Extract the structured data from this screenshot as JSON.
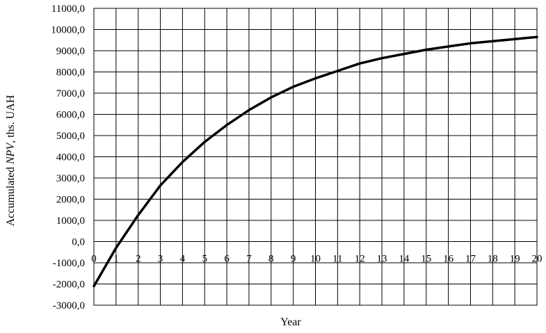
{
  "chart_data": {
    "type": "line",
    "title": "",
    "xlabel": "Year",
    "ylabel_parts": [
      "Accumulated ",
      "NPV",
      ", ths. UAH"
    ],
    "x": [
      0,
      1,
      2,
      3,
      4,
      5,
      6,
      7,
      8,
      9,
      10,
      11,
      12,
      13,
      14,
      15,
      16,
      17,
      18,
      19,
      20
    ],
    "series": [
      {
        "values": [
          -2100,
          -300,
          1250,
          2650,
          3750,
          4700,
          5500,
          6200,
          6800,
          7300,
          7700,
          8050,
          8400,
          8650,
          8850,
          9050,
          9200,
          9350,
          9450,
          9550,
          9650
        ]
      }
    ],
    "xlim": [
      0,
      20
    ],
    "ylim": [
      -3000,
      11000
    ],
    "y_ticks": [
      -3000,
      -2000,
      -1000,
      0,
      1000,
      2000,
      3000,
      4000,
      5000,
      6000,
      7000,
      8000,
      9000,
      10000,
      11000
    ],
    "y_tick_labels": [
      "-3000,0",
      "-2000,0",
      "-1000,0",
      "0,0",
      "1000,0",
      "2000,0",
      "3000,0",
      "4000,0",
      "5000,0",
      "6000,0",
      "7000,0",
      "8000,0",
      "9000,0",
      "10000,0",
      "11000,0"
    ],
    "x_tick_labels": [
      "0",
      "1",
      "2",
      "3",
      "4",
      "5",
      "6",
      "7",
      "8",
      "9",
      "10",
      "11",
      "12",
      "13",
      "14",
      "15",
      "16",
      "17",
      "18",
      "19",
      "20"
    ],
    "grid": true,
    "legend": "none",
    "line_color": "#000000"
  }
}
